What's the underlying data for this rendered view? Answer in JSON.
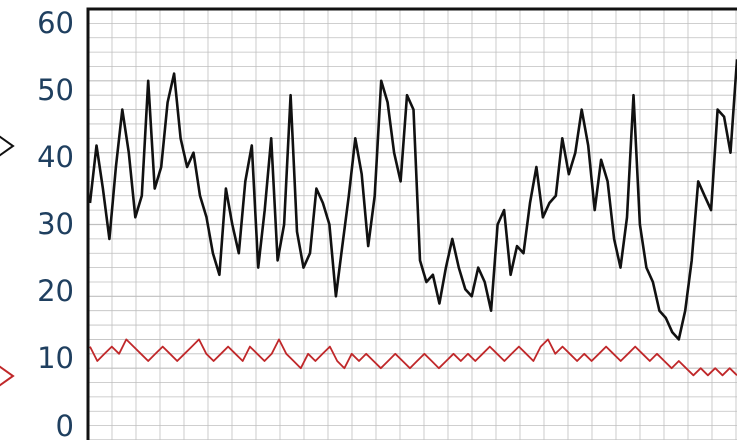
{
  "chart_data": {
    "type": "line",
    "title": "",
    "xlabel": "",
    "ylabel": "",
    "ylim": [
      0,
      60
    ],
    "yticks": [
      "0",
      "10",
      "20",
      "30",
      "40",
      "50",
      "60"
    ],
    "grid": true,
    "colors": {
      "black_series": "#111111",
      "red_series": "#c0282a",
      "axis": "#111111",
      "grid": "#bfbfbf"
    },
    "series": [
      {
        "color": "#111111",
        "values": [
          33,
          41,
          35,
          28,
          38,
          46,
          40,
          31,
          34,
          50,
          35,
          38,
          47,
          51,
          42,
          38,
          40,
          34,
          31,
          26,
          23,
          35,
          30,
          26,
          36,
          41,
          24,
          32,
          42,
          25,
          30,
          48,
          29,
          24,
          26,
          35,
          33,
          30,
          20,
          27,
          34,
          42,
          37,
          27,
          34,
          50,
          47,
          40,
          36,
          48,
          46,
          25,
          22,
          23,
          19,
          24,
          28,
          24,
          21,
          20,
          24,
          22,
          18,
          30,
          32,
          23,
          27,
          26,
          33,
          38,
          31,
          33,
          34,
          42,
          37,
          40,
          46,
          41,
          32,
          39,
          36,
          28,
          24,
          31,
          48,
          30,
          24,
          22,
          18,
          17,
          15,
          14,
          18,
          25,
          36,
          34,
          32,
          46,
          45,
          40,
          53
        ]
      },
      {
        "color": "#c0282a",
        "values": [
          13,
          11,
          12,
          13,
          12,
          14,
          13,
          12,
          11,
          12,
          13,
          12,
          11,
          12,
          13,
          14,
          12,
          11,
          12,
          13,
          12,
          11,
          13,
          12,
          11,
          12,
          14,
          12,
          11,
          10,
          12,
          11,
          12,
          13,
          11,
          10,
          12,
          11,
          12,
          11,
          10,
          11,
          12,
          11,
          10,
          11,
          12,
          11,
          10,
          11,
          12,
          11,
          12,
          11,
          12,
          13,
          12,
          11,
          12,
          13,
          12,
          11,
          13,
          14,
          12,
          13,
          12,
          11,
          12,
          11,
          12,
          13,
          12,
          11,
          12,
          13,
          12,
          11,
          12,
          11,
          10,
          11,
          10,
          9,
          10,
          9,
          10,
          9,
          10,
          9
        ]
      }
    ]
  }
}
